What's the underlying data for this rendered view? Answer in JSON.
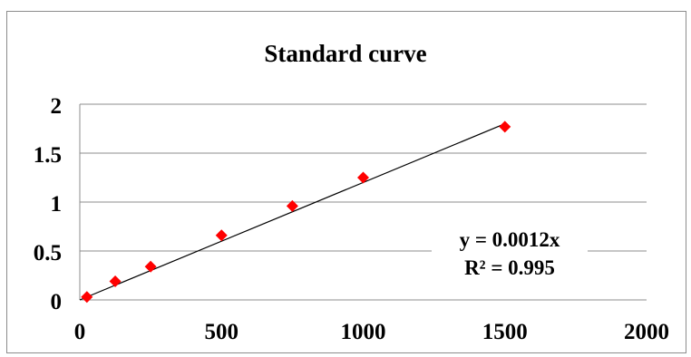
{
  "chart_data": {
    "type": "scatter",
    "title": "Standard curve",
    "xlabel": "",
    "ylabel": "",
    "xlim": [
      0,
      2000
    ],
    "ylim": [
      0,
      2
    ],
    "xticks": [
      0,
      500,
      1000,
      1500,
      2000
    ],
    "yticks": [
      0,
      0.5,
      1,
      1.5,
      2
    ],
    "xtick_labels": [
      "0",
      "500",
      "1000",
      "1500",
      "2000"
    ],
    "ytick_labels": [
      "0",
      "0.5",
      "1",
      "1.5",
      "2"
    ],
    "grid": "horizontal",
    "legend": "none",
    "marker": "diamond",
    "marker_color": "#ff0000",
    "series": [
      {
        "x": [
          25,
          125,
          250,
          500,
          750,
          1000,
          1500
        ],
        "y": [
          0.03,
          0.19,
          0.34,
          0.66,
          0.96,
          1.25,
          1.77
        ]
      }
    ],
    "trendline": {
      "type": "linear",
      "slope": 0.0012,
      "intercept": 0,
      "x_range": [
        0,
        1500
      ],
      "color": "#000000"
    },
    "annotations": {
      "equation": "y = 0.0012x",
      "r_squared": "R² = 0.995"
    }
  }
}
